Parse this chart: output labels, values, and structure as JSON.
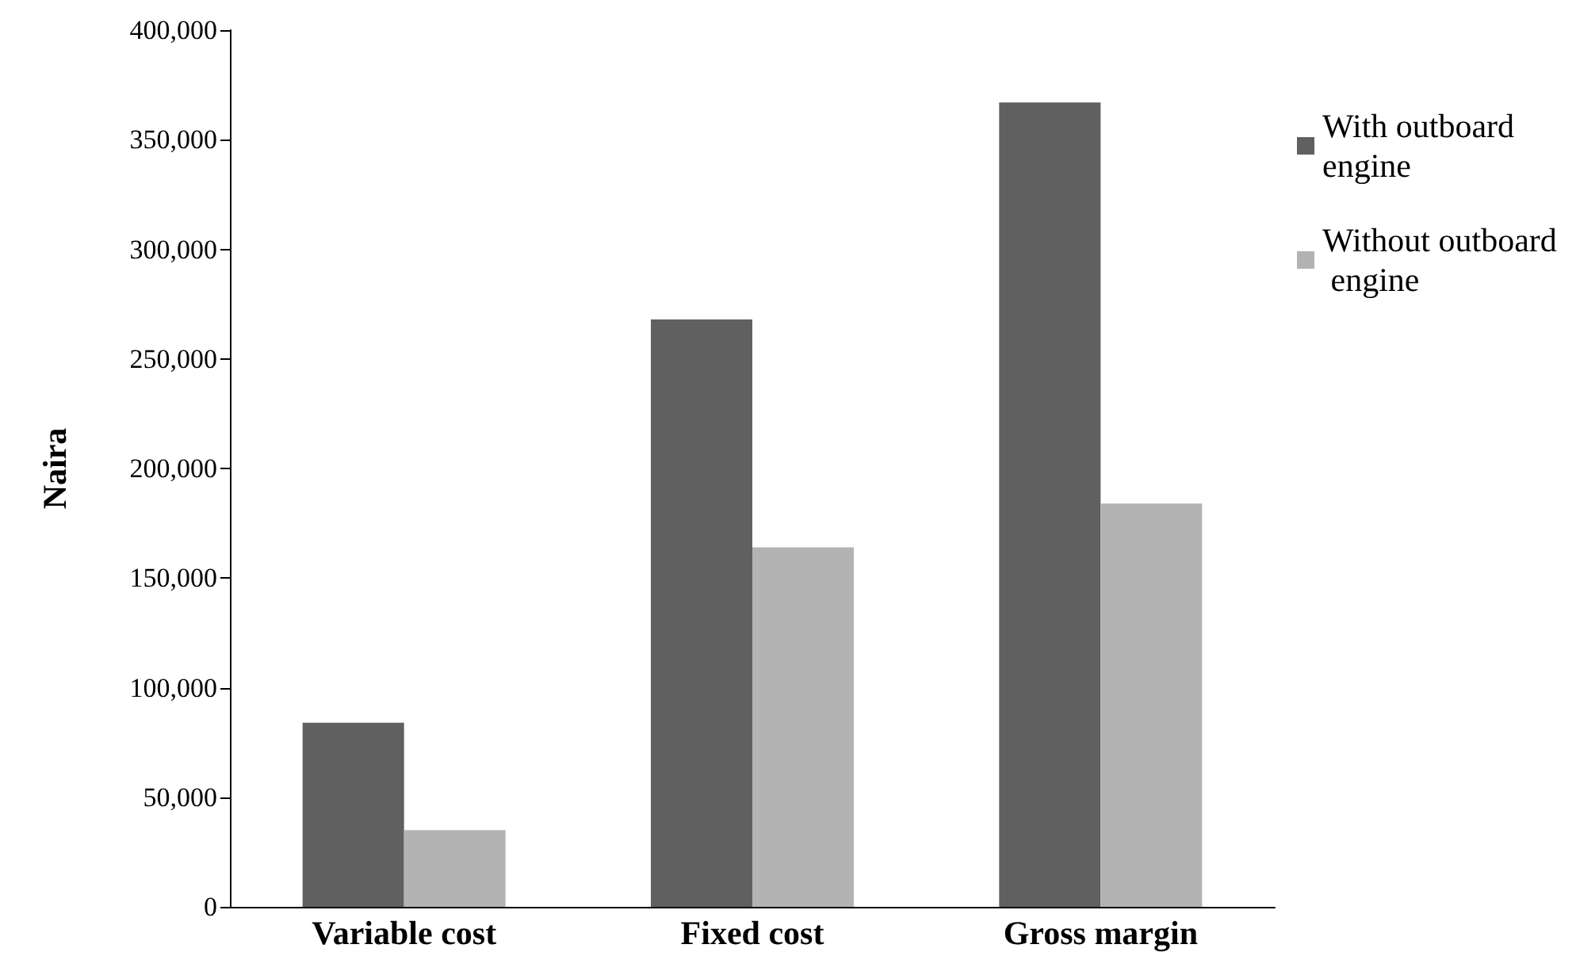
{
  "chart_data": {
    "type": "bar",
    "ylabel": "Naira",
    "categories": [
      "Variable cost",
      "Fixed cost",
      "Gross margin"
    ],
    "series": [
      {
        "name": "With outboard engine",
        "color": "#606060",
        "values": [
          84000,
          268000,
          367000
        ]
      },
      {
        "name": "Without outboard engine",
        "color": "#b3b3b3",
        "values": [
          35000,
          164000,
          184000
        ]
      }
    ],
    "ylim": [
      0,
      400000
    ],
    "yticks": [
      0,
      {
        "value": 50000,
        "label": "50,000"
      },
      {
        "value": 100000,
        "label": "100,000"
      },
      {
        "value": 150000,
        "label": "150,000"
      },
      {
        "value": 200000,
        "label": "200,000"
      },
      {
        "value": 250000,
        "label": "250,000"
      },
      {
        "value": 300000,
        "label": "300,000"
      },
      {
        "value": 350000,
        "label": "350,000"
      },
      {
        "value": 400000,
        "label": "400,000"
      }
    ],
    "grid": false,
    "legend": "top right"
  }
}
